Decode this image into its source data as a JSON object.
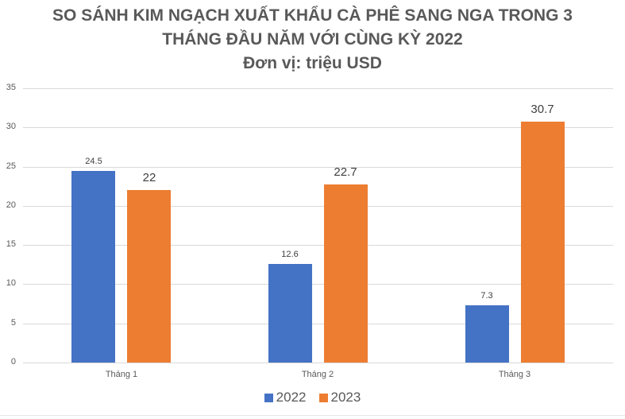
{
  "title": {
    "line1": "SO SÁNH KIM NGẠCH XUẤT KHẨU CÀ PHÊ SANG NGA TRONG 3",
    "line2": "THÁNG ĐẦU NĂM VỚI CÙNG KỲ 2022",
    "line3": "Đơn vị: triệu USD"
  },
  "colors": {
    "series_2022": "#4472c4",
    "series_2023": "#ed7d31",
    "grid": "#d9d9d9"
  },
  "y_ticks": [
    "35",
    "30",
    "25",
    "20",
    "15",
    "10",
    "5",
    "0"
  ],
  "legend": {
    "s1": "2022",
    "s2": "2023"
  },
  "chart_data": {
    "type": "bar",
    "title": "SO SÁNH KIM NGẠCH XUẤT KHẨU CÀ PHÊ SANG NGA TRONG 3 THÁNG ĐẦU NĂM VỚI CÙNG KỲ 2022",
    "subtitle": "Đơn vị: triệu USD",
    "categories": [
      "Tháng 1",
      "Tháng 2",
      "Tháng 3"
    ],
    "series": [
      {
        "name": "2022",
        "values": [
          24.5,
          12.6,
          7.3
        ],
        "labels": [
          "24.5",
          "12.6",
          "7.3"
        ],
        "color": "#4472c4"
      },
      {
        "name": "2023",
        "values": [
          22,
          22.7,
          30.7
        ],
        "labels": [
          "22",
          "22.7",
          "30.7"
        ],
        "color": "#ed7d31"
      }
    ],
    "xlabel": "",
    "ylabel": "",
    "ylim": [
      0,
      35
    ],
    "yticks": [
      0,
      5,
      10,
      15,
      20,
      25,
      30,
      35
    ],
    "grid": true,
    "legend_position": "bottom"
  }
}
